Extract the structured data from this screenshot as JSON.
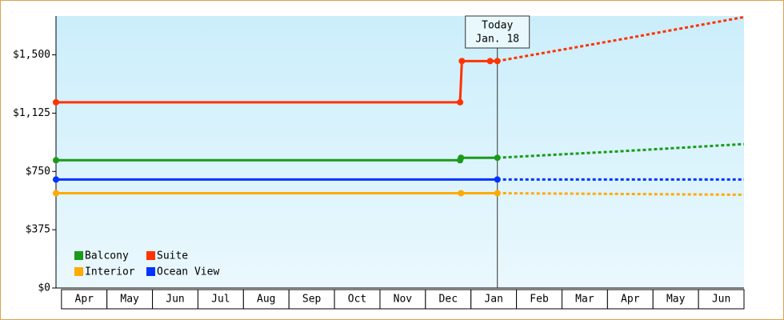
{
  "chart_data": {
    "type": "line",
    "categories": [
      "Apr",
      "May",
      "Jun",
      "Jul",
      "Aug",
      "Sep",
      "Oct",
      "Nov",
      "Dec",
      "Jan",
      "Feb",
      "Mar",
      "Apr",
      "May",
      "Jun"
    ],
    "xlim": [
      -0.12,
      15
    ],
    "ylim": [
      0,
      1750
    ],
    "yticks": [
      {
        "value": 0,
        "label": "$0"
      },
      {
        "value": 375,
        "label": "$375"
      },
      {
        "value": 750,
        "label": "$750"
      },
      {
        "value": 1125,
        "label": "$1,125"
      },
      {
        "value": 1500,
        "label": "$1,500"
      }
    ],
    "today": {
      "x": 9.58,
      "label": "Today",
      "date": "Jan. 18"
    },
    "series": [
      {
        "name": "Balcony",
        "color": "#1a9a1a",
        "x": [
          -0.12,
          8.76,
          8.78,
          9.58
        ],
        "values": [
          822,
          822,
          838,
          838
        ],
        "forecast_x": [
          9.58,
          12.3,
          15
        ],
        "forecast_values": [
          838,
          880,
          926
        ]
      },
      {
        "name": "Suite",
        "color": "#ff3300",
        "x": [
          -0.12,
          8.76,
          8.8,
          9.42,
          9.58
        ],
        "values": [
          1195,
          1195,
          1460,
          1460,
          1460
        ],
        "forecast_x": [
          9.58,
          12.3,
          15
        ],
        "forecast_values": [
          1460,
          1600,
          1743
        ]
      },
      {
        "name": "Interior",
        "color": "#ffaa00",
        "x": [
          -0.12,
          8.78,
          9.58
        ],
        "values": [
          610,
          610,
          610
        ],
        "forecast_x": [
          9.58,
          12.3,
          15
        ],
        "forecast_values": [
          610,
          605,
          600
        ]
      },
      {
        "name": "Ocean View",
        "color": "#0033ff",
        "x": [
          -0.12,
          9.58
        ],
        "values": [
          698,
          698
        ],
        "forecast_x": [
          9.58,
          15
        ],
        "forecast_values": [
          698,
          698
        ]
      }
    ]
  }
}
